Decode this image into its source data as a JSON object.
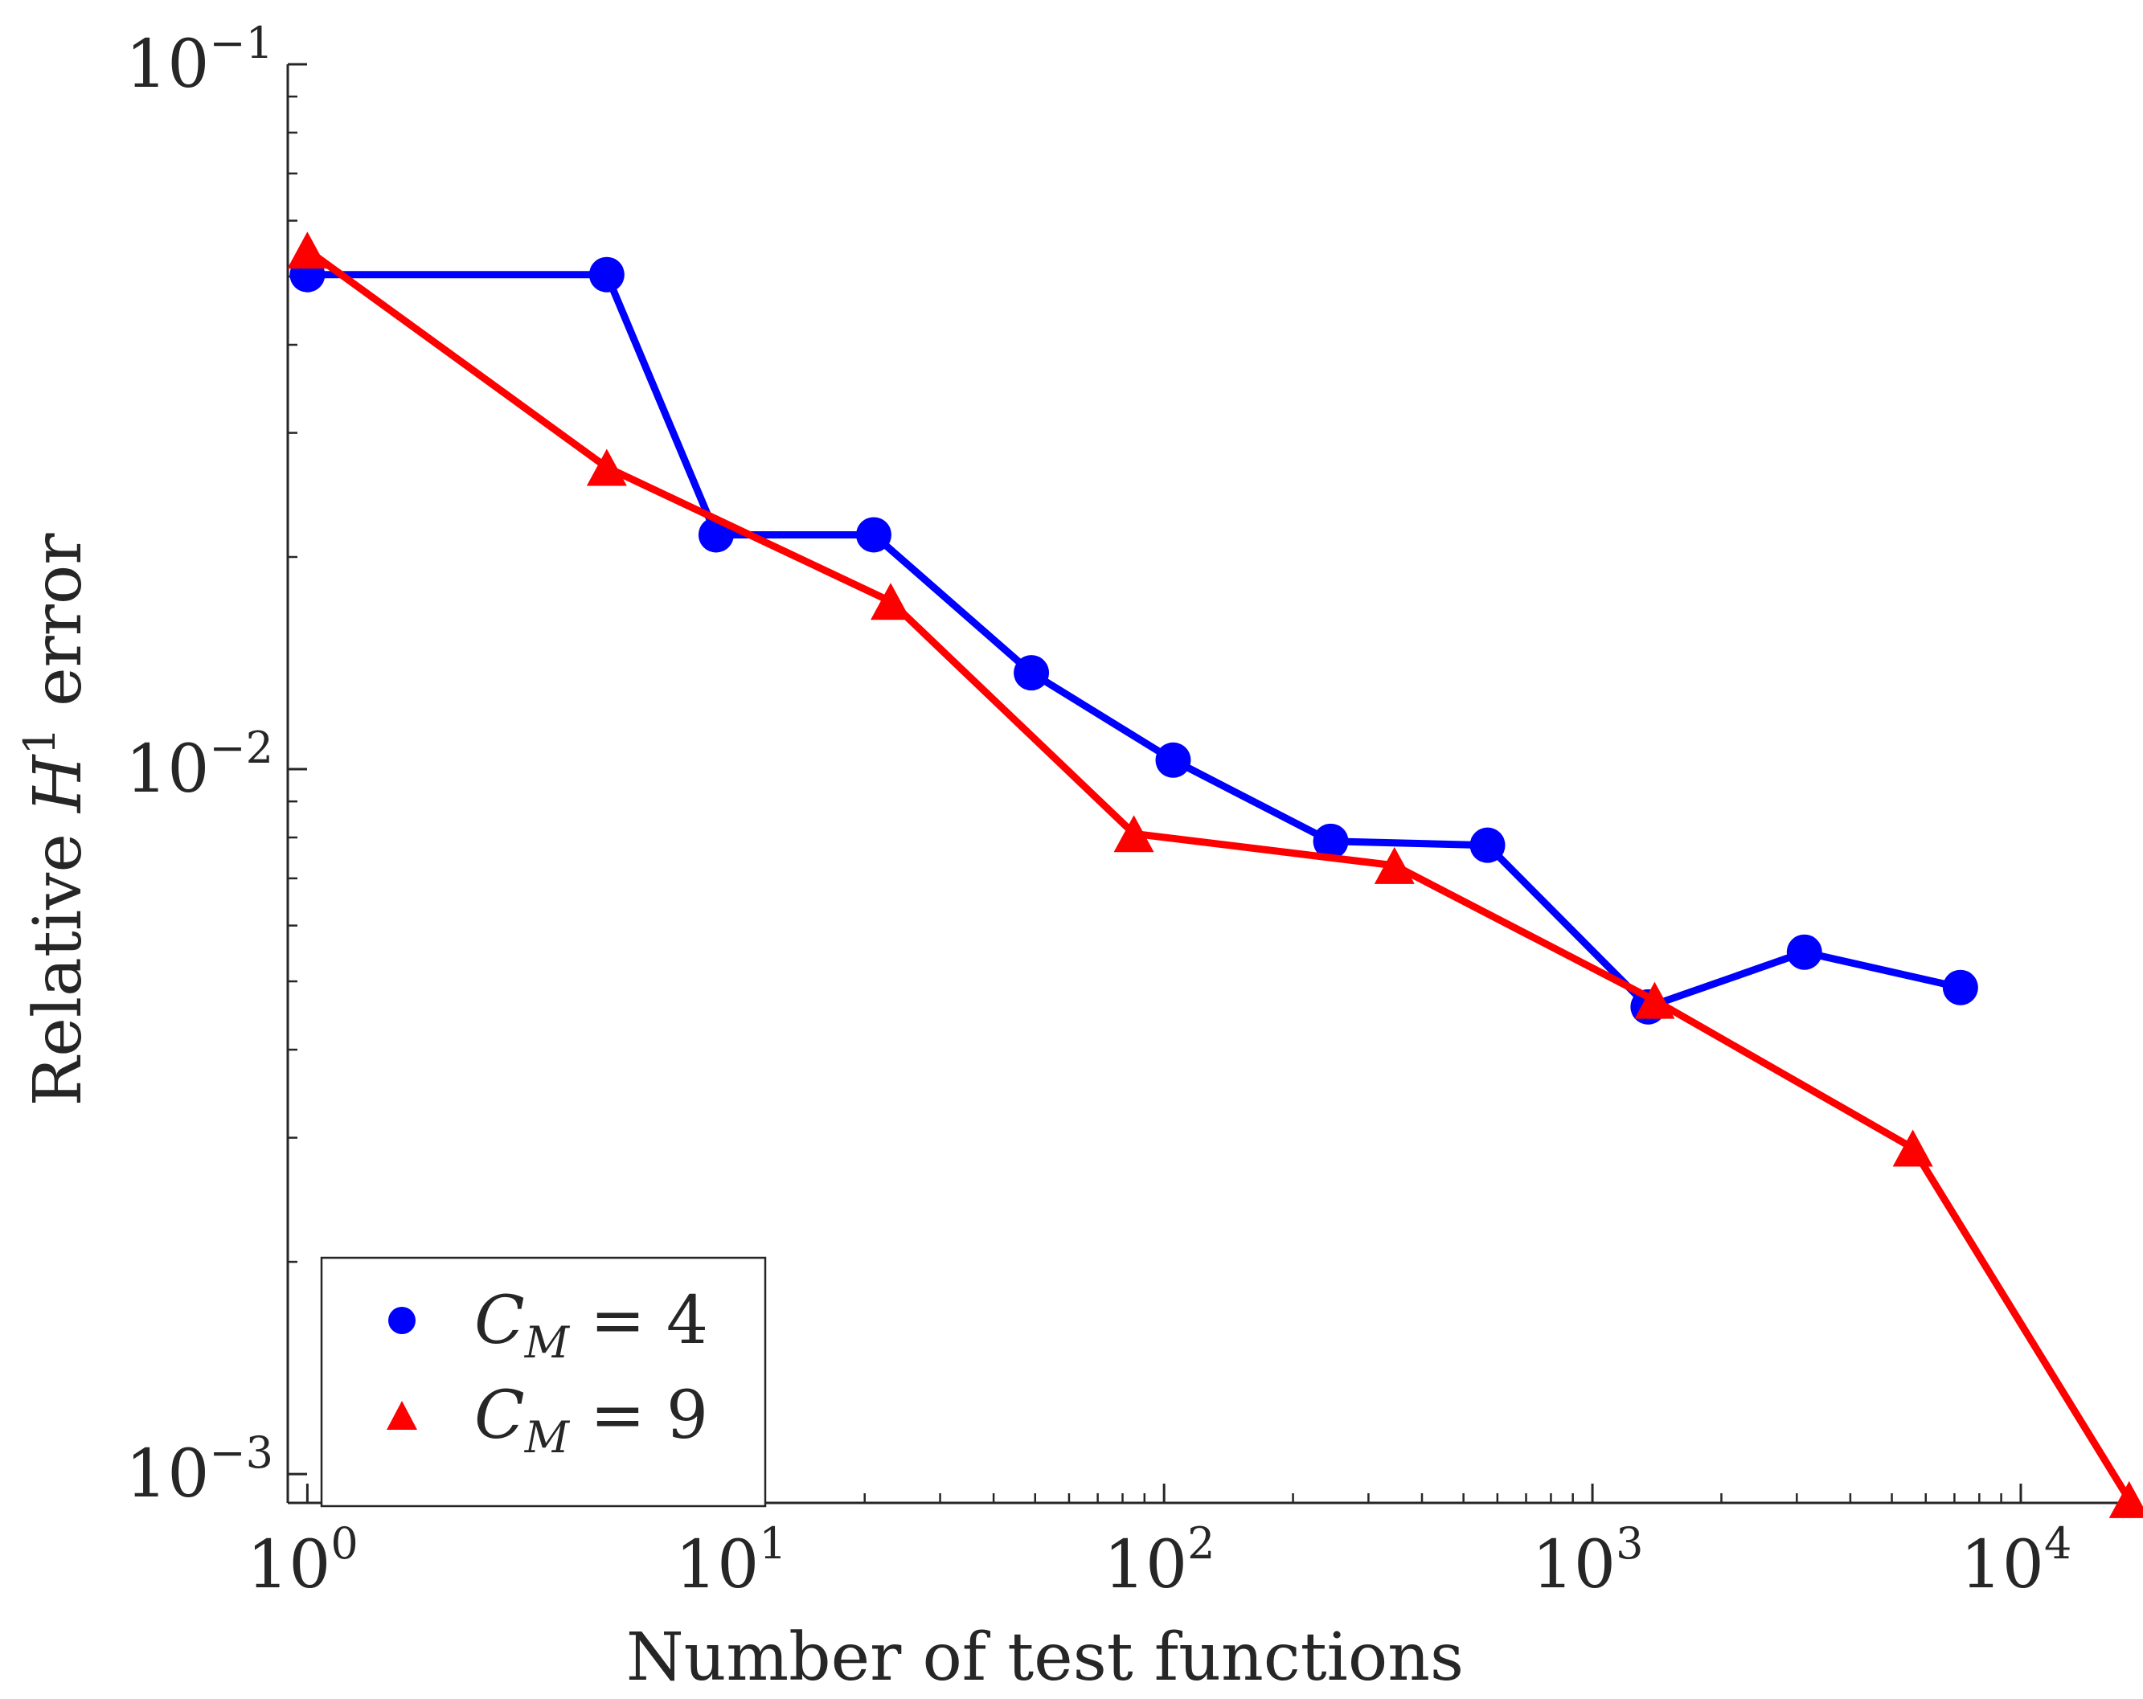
{
  "chart_data": {
    "type": "line",
    "xscale": "log",
    "yscale": "log",
    "xlim": [
      0.9,
      18000
    ],
    "ylim": [
      0.00091,
      0.1
    ],
    "xlabel": "Number of test functions",
    "ylabel": {
      "prefix": "Relative ",
      "var": "H",
      "sup": "1",
      "suffix": " error"
    },
    "x_ticks": [
      {
        "value": 1,
        "base": "10",
        "exp": "0"
      },
      {
        "value": 10,
        "base": "10",
        "exp": "1"
      },
      {
        "value": 100,
        "base": "10",
        "exp": "2"
      },
      {
        "value": 1000,
        "base": "10",
        "exp": "3"
      },
      {
        "value": 10000,
        "base": "10",
        "exp": "4"
      }
    ],
    "y_ticks": [
      {
        "value": 0.001,
        "base": "10",
        "exp": "−3"
      },
      {
        "value": 0.01,
        "base": "10",
        "exp": "−2"
      },
      {
        "value": 0.1,
        "base": "10",
        "exp": "−1"
      }
    ],
    "legend_position": "bottom-left",
    "series": [
      {
        "name": "C_M = 4",
        "legend": {
          "var": "C",
          "sub": "M",
          "rest": " = 4"
        },
        "color": "#0000ff",
        "marker": "circle",
        "x": [
          1,
          5,
          9,
          21,
          49,
          105,
          245,
          569,
          1349,
          3125,
          7229
        ],
        "y": [
          0.0503,
          0.0503,
          0.0215,
          0.0215,
          0.0137,
          0.0103,
          0.0079,
          0.0078,
          0.0046,
          0.0055,
          0.0049
        ]
      },
      {
        "name": "C_M = 9",
        "legend": {
          "var": "C",
          "sub": "M",
          "rest": " = 9"
        },
        "color": "#ff0000",
        "marker": "triangle",
        "x": [
          1,
          5,
          23,
          85,
          345,
          1397,
          5597,
          17900
        ],
        "y": [
          0.0545,
          0.0268,
          0.0173,
          0.0081,
          0.0073,
          0.0047,
          0.0029,
          0.00092
        ]
      }
    ]
  }
}
